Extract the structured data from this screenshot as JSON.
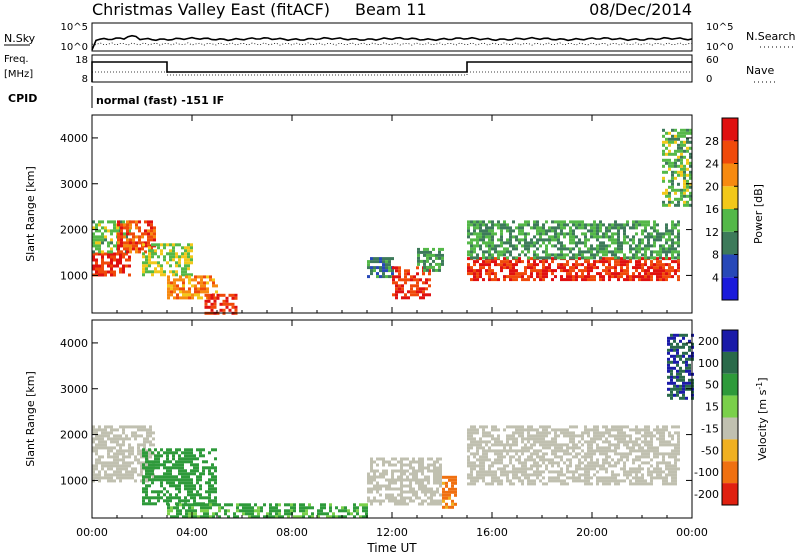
{
  "header": {
    "station": "Christmas Valley East (fitACF)",
    "beam": "Beam 11",
    "date": "08/Dec/2014"
  },
  "status": {
    "nsky_label": "N.Sky",
    "nsky_tick_top": "10^5",
    "nsky_tick_bottom": "10^0",
    "nsearch_label": "N.Search",
    "nsearch_tick_top": "10^5",
    "nsearch_tick_bottom": "10^0",
    "freq_label_1": "Freq.",
    "freq_label_2": "[MHz]",
    "freq_tick_top": "18",
    "freq_tick_bottom": "8",
    "nave_label": "Nave",
    "nave_tick_top": "60",
    "nave_tick_bottom": "0",
    "cpid_label": "CPID",
    "cpid_text": "normal (fast) -151 IF"
  },
  "colors": {
    "power_scale": [
      "#1a1adb",
      "#2748b8",
      "#3d7a5a",
      "#54b848",
      "#f2c81a",
      "#f78a10",
      "#f04a0a",
      "#e01010"
    ],
    "velocity_scale": [
      "#1a1aa8",
      "#2a6a4a",
      "#2e9a3a",
      "#7ad04a",
      "#c0c0b0",
      "#f0b020",
      "#f07010",
      "#e02010",
      "#e01010"
    ]
  },
  "chart_data": [
    {
      "type": "heatmap",
      "title": "Power",
      "ylabel": "Slant Range [km]",
      "xlabel": "Time UT",
      "ylim": [
        180,
        4500
      ],
      "yticks": [
        1000,
        2000,
        3000,
        4000
      ],
      "xticks": [
        "00:00",
        "04:00",
        "08:00",
        "12:00",
        "16:00",
        "20:00",
        "00:00"
      ],
      "colorbar": {
        "label": "Power [dB]",
        "ticks": [
          4,
          8,
          12,
          16,
          20,
          24,
          28
        ],
        "range": [
          0,
          32
        ]
      },
      "regions": [
        {
          "start_ut": 0.0,
          "end_ut": 1.5,
          "range_low": 1000,
          "range_high": 1500,
          "power_db": 28
        },
        {
          "start_ut": 0.0,
          "end_ut": 1.5,
          "range_low": 1500,
          "range_high": 2200,
          "power_db": 14
        },
        {
          "start_ut": 1.0,
          "end_ut": 2.5,
          "range_low": 1500,
          "range_high": 2200,
          "power_db": 26
        },
        {
          "start_ut": 2.0,
          "end_ut": 4.0,
          "range_low": 1000,
          "range_high": 1700,
          "power_db": 16
        },
        {
          "start_ut": 3.0,
          "end_ut": 5.0,
          "range_low": 500,
          "range_high": 1000,
          "power_db": 22
        },
        {
          "start_ut": 4.5,
          "end_ut": 5.8,
          "range_low": 200,
          "range_high": 600,
          "power_db": 28
        },
        {
          "start_ut": 11.0,
          "end_ut": 12.0,
          "range_low": 1000,
          "range_high": 1400,
          "power_db": 10
        },
        {
          "start_ut": 12.0,
          "end_ut": 13.5,
          "range_low": 500,
          "range_high": 1200,
          "power_db": 28
        },
        {
          "start_ut": 13.0,
          "end_ut": 14.0,
          "range_low": 1100,
          "range_high": 1600,
          "power_db": 12
        },
        {
          "start_ut": 15.0,
          "end_ut": 23.5,
          "range_low": 900,
          "range_high": 1400,
          "power_db": 28
        },
        {
          "start_ut": 15.0,
          "end_ut": 23.5,
          "range_low": 1400,
          "range_high": 2200,
          "power_db": 12
        },
        {
          "start_ut": 22.8,
          "end_ut": 24.0,
          "range_low": 2500,
          "range_high": 4200,
          "power_db": 14
        }
      ]
    },
    {
      "type": "heatmap",
      "title": "Velocity",
      "ylabel": "Slant Range [km]",
      "xlabel": "Time UT",
      "ylim": [
        180,
        4500
      ],
      "yticks": [
        1000,
        2000,
        3000,
        4000
      ],
      "xticks": [
        "00:00",
        "04:00",
        "08:00",
        "12:00",
        "16:00",
        "20:00",
        "00:00"
      ],
      "colorbar": {
        "label": "Velocity [m s^-1]",
        "ticks": [
          200,
          100,
          50,
          15,
          -15,
          -50,
          -100,
          -200
        ]
      },
      "regions": [
        {
          "start_ut": 0.0,
          "end_ut": 2.5,
          "range_low": 1000,
          "range_high": 2200,
          "velocity": 0
        },
        {
          "start_ut": 2.0,
          "end_ut": 5.0,
          "range_low": 500,
          "range_high": 1700,
          "velocity": 60
        },
        {
          "start_ut": 3.0,
          "end_ut": 11.0,
          "range_low": 200,
          "range_high": 500,
          "velocity": 40
        },
        {
          "start_ut": 11.0,
          "end_ut": 14.0,
          "range_low": 500,
          "range_high": 1500,
          "velocity": 0
        },
        {
          "start_ut": 14.0,
          "end_ut": 14.6,
          "range_low": 400,
          "range_high": 1100,
          "velocity": -60
        },
        {
          "start_ut": 15.0,
          "end_ut": 23.5,
          "range_low": 900,
          "range_high": 2200,
          "velocity": 0
        },
        {
          "start_ut": 23.0,
          "end_ut": 24.0,
          "range_low": 2800,
          "range_high": 4200,
          "velocity": 150
        }
      ]
    }
  ]
}
